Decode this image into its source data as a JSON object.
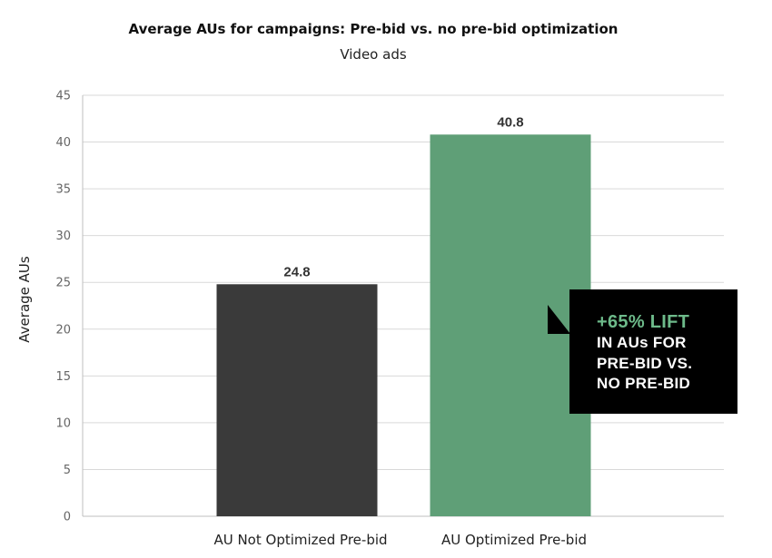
{
  "chart_data": {
    "type": "bar",
    "title": "Average AUs for campaigns: Pre-bid vs. no pre-bid optimization",
    "subtitle": "Video ads",
    "xlabel": "",
    "ylabel": "Average AUs",
    "ylim": [
      0,
      45
    ],
    "yticks": [
      0,
      5,
      10,
      15,
      20,
      25,
      30,
      35,
      40,
      45
    ],
    "grid": true,
    "categories": [
      "AU Not Optimized Pre-bid",
      "AU Optimized Pre-bid"
    ],
    "values": [
      24.8,
      40.8
    ],
    "value_labels": [
      "24.8",
      "40.8"
    ],
    "bar_colors": [
      "#3a3a3a",
      "#5f9f77"
    ]
  },
  "callout": {
    "headline": "+65% LIFT",
    "line1": "IN AUs FOR",
    "line2": "PRE-BID VS.",
    "line3": "NO PRE-BID",
    "headline_color": "#6dba8a",
    "background": "#000000"
  }
}
